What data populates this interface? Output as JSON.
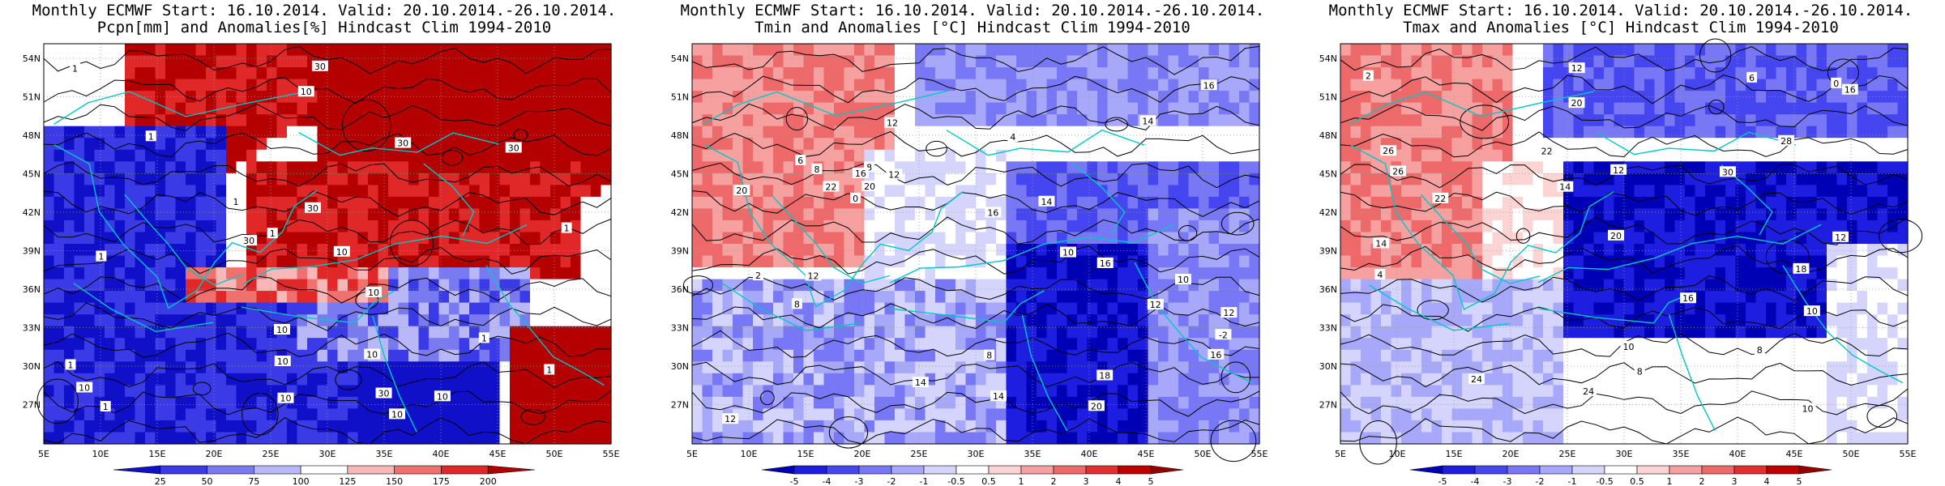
{
  "panels": [
    {
      "id": "pcpn",
      "title_line1": "Monthly ECMWF Start: 16.10.2014. Valid: 20.10.2014.-26.10.2014.",
      "title_line2": "Pcpn[mm] and Anomalies[%] Hindcast Clim 1994-2010",
      "colorbar": {
        "labels": [
          "25",
          "50",
          "75",
          "100",
          "125",
          "150",
          "175",
          "200"
        ],
        "colors": [
          "#1010c8",
          "#3a3ae6",
          "#7a7af0",
          "#b8b8f8",
          "#ffffff",
          "#f8b8b8",
          "#f07070",
          "#e02828",
          "#b40000"
        ]
      },
      "contour_labels": [
        "10",
        "30",
        "10",
        "10",
        "10",
        "10",
        "10",
        "30",
        "10",
        "10",
        "10",
        "30",
        "30",
        "30",
        "10",
        "1",
        "1",
        "1",
        "1",
        "1",
        "1",
        "1",
        "1",
        "1",
        "1",
        "30"
      ]
    },
    {
      "id": "tmin",
      "title_line1": "Monthly ECMWF Start: 16.10.2014. Valid: 20.10.2014.-26.10.2014.",
      "title_line2": "Tmin and Anomalies [°C] Hindcast Clim 1994-2010",
      "colorbar": {
        "labels": [
          "-5",
          "-4",
          "-3",
          "-2",
          "-1",
          "-0.5",
          "0.5",
          "1",
          "2",
          "3",
          "4",
          "5"
        ],
        "colors": [
          "#0000b4",
          "#1e1ee0",
          "#4646f0",
          "#7878f6",
          "#a8a8fa",
          "#d4d4fc",
          "#ffffff",
          "#fcd4d4",
          "#f6a0a0",
          "#ee6a6a",
          "#e03030",
          "#c00000",
          "#960000"
        ]
      },
      "contour_labels": [
        "0",
        "-2",
        "2",
        "4",
        "6",
        "8",
        "8",
        "8",
        "12",
        "12",
        "12",
        "12",
        "14",
        "14",
        "14",
        "16",
        "16",
        "16",
        "16",
        "18",
        "20",
        "20",
        "20",
        "22",
        "12",
        "10",
        "8",
        "10",
        "12",
        "14",
        "16"
      ]
    },
    {
      "id": "tmax",
      "title_line1": "Monthly ECMWF Start: 16.10.2014. Valid: 20.10.2014.-26.10.2014.",
      "title_line2": "Tmax and Anomalies [°C] Hindcast Clim 1994-2010",
      "colorbar": {
        "labels": [
          "-5",
          "-4",
          "-3",
          "-2",
          "-1",
          "-0.5",
          "0.5",
          "1",
          "2",
          "3",
          "4",
          "5"
        ],
        "colors": [
          "#0000b4",
          "#1e1ee0",
          "#4646f0",
          "#7878f6",
          "#a8a8fa",
          "#d4d4fc",
          "#ffffff",
          "#fcd4d4",
          "#f6a0a0",
          "#ee6a6a",
          "#e03030",
          "#c00000",
          "#960000"
        ]
      },
      "contour_labels": [
        "0",
        "2",
        "4",
        "6",
        "8",
        "10",
        "12",
        "14",
        "16",
        "18",
        "20",
        "22",
        "24",
        "26",
        "28",
        "30",
        "14",
        "10",
        "12",
        "16",
        "20",
        "22",
        "24",
        "26",
        "12",
        "10",
        "8"
      ]
    }
  ],
  "axes": {
    "lat_labels": [
      "54N",
      "51N",
      "48N",
      "45N",
      "42N",
      "39N",
      "36N",
      "33N",
      "30N",
      "27N"
    ],
    "lon_labels": [
      "5E",
      "10E",
      "15E",
      "20E",
      "25E",
      "30E",
      "35E",
      "40E",
      "45E",
      "50E",
      "55E"
    ]
  },
  "colors": {
    "coast": "#00c8c8",
    "contour": "#000000",
    "grid": "#9a9a9a"
  }
}
